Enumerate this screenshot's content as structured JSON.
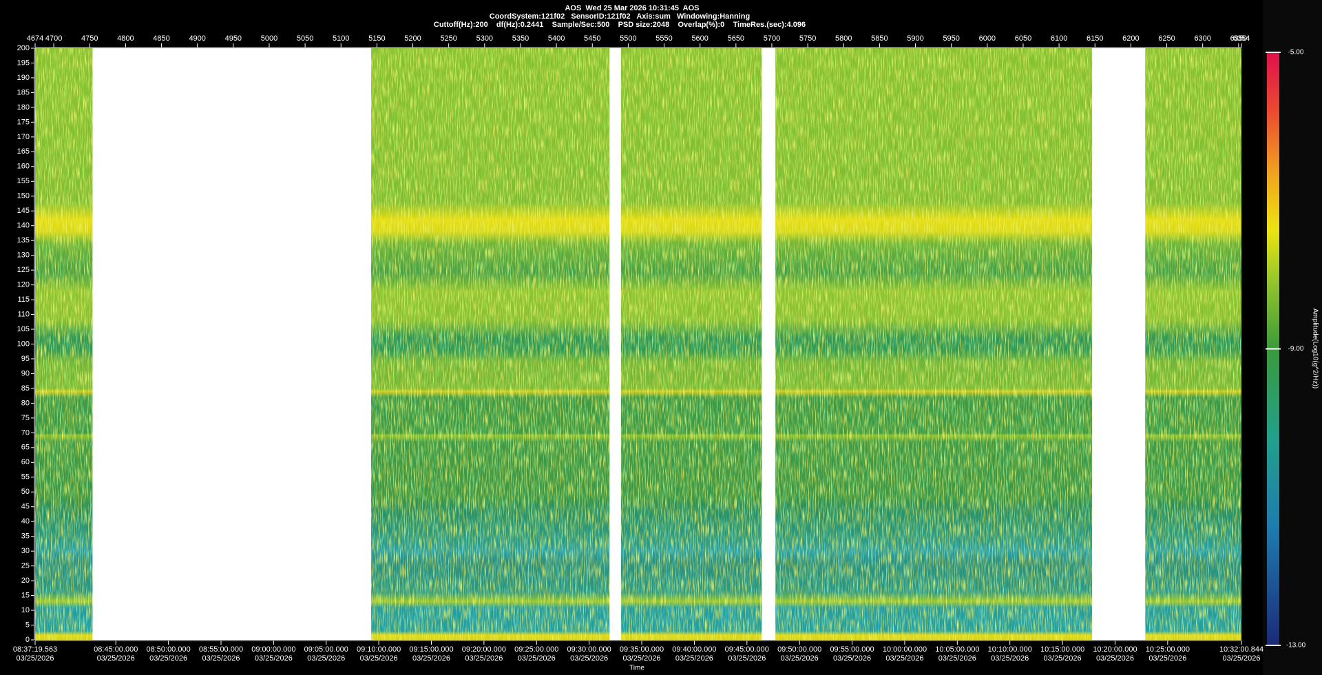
{
  "chart_data": {
    "type": "spectrogram",
    "title_lines": [
      "AOS  Wed 25 Mar 2026 10:31:45  AOS",
      "CoordSystem:121f02   SensorID:121f02   Axis:sum   Windowing:Hanning",
      "Cuttoff(Hz):200    df(Hz):0.2441    Sample/Sec:500    PSD size:2048    Overlap(%):0    TimeRes.(sec):4.096"
    ],
    "xlabel": "Time",
    "colorbar_label": "Amplitude(Log10(g^2/Hz))",
    "xlim": [
      4674,
      6354
    ],
    "xticks": [
      4674,
      4700,
      4750,
      4800,
      4850,
      4900,
      4950,
      5000,
      5050,
      5100,
      5150,
      5200,
      5250,
      5300,
      5350,
      5400,
      5450,
      5500,
      5550,
      5600,
      5650,
      5700,
      5750,
      5800,
      5850,
      5900,
      5950,
      6000,
      6050,
      6100,
      6150,
      6200,
      6250,
      6300,
      6350,
      6354
    ],
    "ylim": [
      0,
      200
    ],
    "yticks": [
      0,
      5,
      10,
      15,
      20,
      25,
      30,
      35,
      40,
      45,
      50,
      55,
      60,
      65,
      70,
      75,
      80,
      85,
      90,
      95,
      100,
      105,
      110,
      115,
      120,
      125,
      130,
      135,
      140,
      145,
      150,
      155,
      160,
      165,
      170,
      175,
      180,
      185,
      190,
      195,
      200
    ],
    "segments": [
      [
        4674,
        4754
      ],
      [
        5142,
        5474
      ],
      [
        5490,
        5686
      ],
      [
        5705,
        6146
      ],
      [
        6220,
        6354
      ]
    ],
    "time_labels": [
      {
        "time": "08:37:19.563",
        "date": "03/25/2026"
      },
      {
        "time": "08:45:00.000",
        "date": "03/25/2026"
      },
      {
        "time": "08:50:00.000",
        "date": "03/25/2026"
      },
      {
        "time": "08:55:00.000",
        "date": "03/25/2026"
      },
      {
        "time": "09:00:00.000",
        "date": "03/25/2026"
      },
      {
        "time": "09:05:00.000",
        "date": "03/25/2026"
      },
      {
        "time": "09:10:00.000",
        "date": "03/25/2026"
      },
      {
        "time": "09:15:00.000",
        "date": "03/25/2026"
      },
      {
        "time": "09:20:00.000",
        "date": "03/25/2026"
      },
      {
        "time": "09:25:00.000",
        "date": "03/25/2026"
      },
      {
        "time": "09:30:00.000",
        "date": "03/25/2026"
      },
      {
        "time": "09:35:00.000",
        "date": "03/25/2026"
      },
      {
        "time": "09:40:00.000",
        "date": "03/25/2026"
      },
      {
        "time": "09:45:00.000",
        "date": "03/25/2026"
      },
      {
        "time": "09:50:00.000",
        "date": "03/25/2026"
      },
      {
        "time": "09:55:00.000",
        "date": "03/25/2026"
      },
      {
        "time": "10:00:00.000",
        "date": "03/25/2026"
      },
      {
        "time": "10:05:00.000",
        "date": "03/25/2026"
      },
      {
        "time": "10:10:00.000",
        "date": "03/25/2026"
      },
      {
        "time": "10:15:00.000",
        "date": "03/25/2026"
      },
      {
        "time": "10:20:00.000",
        "date": "03/25/2026"
      },
      {
        "time": "10:25:00.000",
        "date": "03/25/2026"
      },
      {
        "time": "10:32:00.844",
        "date": "03/25/2026"
      }
    ],
    "clim": [
      -13,
      -5
    ],
    "cticks": [
      {
        "value": -5,
        "label": "-5.00"
      },
      {
        "value": -9,
        "label": "-9.00"
      },
      {
        "value": -13,
        "label": "-13.00"
      }
    ]
  }
}
